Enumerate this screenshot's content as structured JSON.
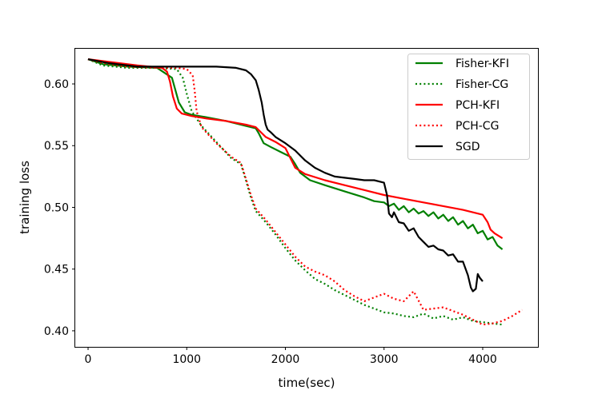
{
  "chart_data": {
    "type": "line",
    "title": "",
    "xlabel": "time(sec)",
    "ylabel": "training loss",
    "xlim": [
      -130,
      4560
    ],
    "ylim": [
      0.387,
      0.6285
    ],
    "xticks": [
      0,
      1000,
      2000,
      3000,
      4000
    ],
    "yticks": [
      0.4,
      0.45,
      0.5,
      0.55,
      0.6
    ],
    "xtick_labels": [
      "0",
      "1000",
      "2000",
      "3000",
      "4000"
    ],
    "ytick_labels": [
      "0.40",
      "0.45",
      "0.50",
      "0.55",
      "0.60"
    ],
    "grid": false,
    "legend_position": "top-right",
    "series": [
      {
        "name": "Fisher-KFI",
        "color": "#008000",
        "style": "solid",
        "x": [
          0,
          150,
          400,
          700,
          850,
          920,
          980,
          1050,
          1200,
          1400,
          1600,
          1700,
          1730,
          1780,
          1850,
          1950,
          2050,
          2100,
          2150,
          2250,
          2400,
          2600,
          2800,
          2900,
          3000,
          3050,
          3100,
          3150,
          3200,
          3250,
          3300,
          3350,
          3400,
          3450,
          3500,
          3550,
          3600,
          3650,
          3700,
          3750,
          3800,
          3850,
          3900,
          3950,
          4000,
          4050,
          4100,
          4150,
          4200
        ],
        "y": [
          0.62,
          0.616,
          0.614,
          0.613,
          0.605,
          0.585,
          0.577,
          0.575,
          0.573,
          0.57,
          0.566,
          0.564,
          0.56,
          0.552,
          0.549,
          0.545,
          0.541,
          0.535,
          0.528,
          0.522,
          0.518,
          0.513,
          0.508,
          0.505,
          0.504,
          0.501,
          0.503,
          0.498,
          0.501,
          0.496,
          0.499,
          0.495,
          0.497,
          0.493,
          0.496,
          0.491,
          0.494,
          0.489,
          0.492,
          0.486,
          0.489,
          0.483,
          0.486,
          0.479,
          0.481,
          0.474,
          0.476,
          0.469,
          0.466
        ]
      },
      {
        "name": "Fisher-CG",
        "color": "#008000",
        "style": "dotted",
        "x": [
          0,
          150,
          400,
          700,
          900,
          960,
          1000,
          1050,
          1150,
          1300,
          1450,
          1550,
          1600,
          1650,
          1700,
          1800,
          1900,
          2000,
          2100,
          2200,
          2300,
          2400,
          2500,
          2600,
          2700,
          2800,
          2900,
          3000,
          3100,
          3200,
          3300,
          3400,
          3500,
          3600,
          3700,
          3800,
          3900,
          4000,
          4100,
          4200
        ],
        "y": [
          0.62,
          0.615,
          0.613,
          0.613,
          0.612,
          0.605,
          0.592,
          0.578,
          0.566,
          0.553,
          0.54,
          0.535,
          0.522,
          0.508,
          0.497,
          0.488,
          0.478,
          0.467,
          0.457,
          0.449,
          0.442,
          0.438,
          0.433,
          0.429,
          0.425,
          0.421,
          0.418,
          0.415,
          0.414,
          0.412,
          0.411,
          0.414,
          0.41,
          0.412,
          0.409,
          0.411,
          0.408,
          0.407,
          0.406,
          0.405
        ]
      },
      {
        "name": "PCH-KFI",
        "color": "#ff0000",
        "style": "solid",
        "x": [
          0,
          200,
          500,
          750,
          800,
          830,
          860,
          900,
          950,
          1050,
          1200,
          1400,
          1600,
          1700,
          1800,
          1900,
          2000,
          2050,
          2100,
          2200,
          2400,
          2600,
          2800,
          3000,
          3200,
          3400,
          3600,
          3800,
          4000,
          4050,
          4080,
          4120,
          4200
        ],
        "y": [
          0.62,
          0.618,
          0.615,
          0.613,
          0.61,
          0.602,
          0.59,
          0.58,
          0.576,
          0.574,
          0.572,
          0.57,
          0.567,
          0.565,
          0.557,
          0.553,
          0.548,
          0.54,
          0.532,
          0.527,
          0.522,
          0.518,
          0.514,
          0.51,
          0.507,
          0.504,
          0.501,
          0.498,
          0.494,
          0.488,
          0.482,
          0.479,
          0.475
        ]
      },
      {
        "name": "PCH-CG",
        "color": "#ff0000",
        "style": "dotted",
        "x": [
          0,
          150,
          400,
          700,
          900,
          1000,
          1060,
          1080,
          1100,
          1150,
          1300,
          1450,
          1550,
          1600,
          1650,
          1700,
          1800,
          1900,
          2000,
          2100,
          2200,
          2300,
          2400,
          2500,
          2600,
          2700,
          2800,
          2900,
          3000,
          3100,
          3200,
          3300,
          3400,
          3500,
          3600,
          3700,
          3800,
          3900,
          4000,
          4100,
          4200,
          4300,
          4400
        ],
        "y": [
          0.62,
          0.617,
          0.614,
          0.613,
          0.613,
          0.612,
          0.607,
          0.595,
          0.578,
          0.565,
          0.552,
          0.541,
          0.536,
          0.523,
          0.51,
          0.499,
          0.49,
          0.48,
          0.47,
          0.46,
          0.452,
          0.448,
          0.445,
          0.44,
          0.433,
          0.428,
          0.424,
          0.427,
          0.43,
          0.426,
          0.424,
          0.432,
          0.417,
          0.418,
          0.419,
          0.416,
          0.413,
          0.409,
          0.405,
          0.406,
          0.408,
          0.412,
          0.417
        ]
      },
      {
        "name": "SGD",
        "color": "#000000",
        "style": "solid",
        "x": [
          0,
          200,
          500,
          1000,
          1300,
          1500,
          1600,
          1650,
          1700,
          1730,
          1760,
          1780,
          1800,
          1820,
          1850,
          1900,
          2000,
          2100,
          2200,
          2300,
          2400,
          2500,
          2600,
          2700,
          2800,
          2900,
          3000,
          3030,
          3050,
          3080,
          3100,
          3150,
          3200,
          3250,
          3300,
          3350,
          3400,
          3450,
          3500,
          3550,
          3600,
          3650,
          3700,
          3750,
          3800,
          3850,
          3880,
          3900,
          3930,
          3950,
          3970,
          4000
        ],
        "y": [
          0.62,
          0.617,
          0.614,
          0.614,
          0.614,
          0.613,
          0.611,
          0.608,
          0.603,
          0.595,
          0.585,
          0.575,
          0.567,
          0.563,
          0.561,
          0.557,
          0.552,
          0.546,
          0.538,
          0.532,
          0.528,
          0.525,
          0.524,
          0.523,
          0.522,
          0.522,
          0.52,
          0.51,
          0.495,
          0.492,
          0.496,
          0.488,
          0.487,
          0.481,
          0.483,
          0.476,
          0.472,
          0.468,
          0.469,
          0.466,
          0.465,
          0.461,
          0.462,
          0.456,
          0.456,
          0.445,
          0.435,
          0.432,
          0.434,
          0.446,
          0.443,
          0.44
        ]
      }
    ]
  }
}
